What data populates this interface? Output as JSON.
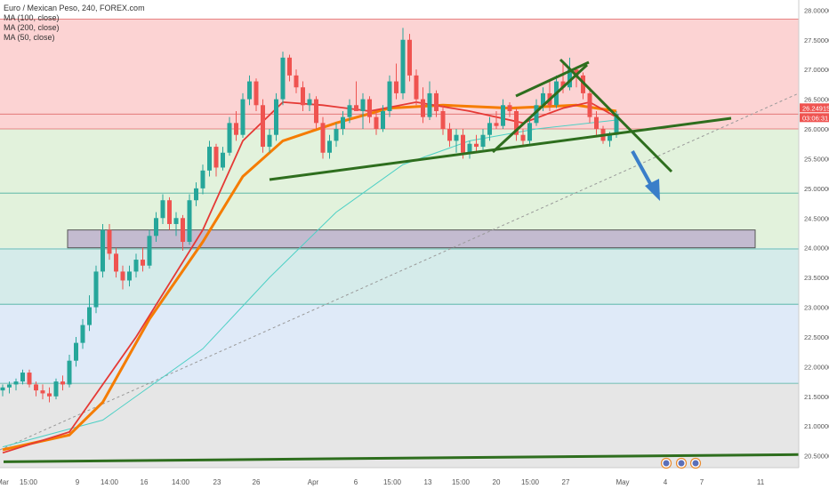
{
  "chart_data": {
    "type": "candlestick",
    "symbol_title": "Euro / Mexican Peso, 240, FOREX.com",
    "indicators": [
      "MA (100, close)",
      "MA (200, close)",
      "MA (50, close)"
    ],
    "y_ticks": [
      "28.00000",
      "27.50000",
      "27.00000",
      "26.50000",
      "26.00000",
      "25.50000",
      "25.00000",
      "24.50000",
      "24.00000",
      "23.50000",
      "23.00000",
      "22.50000",
      "22.00000",
      "21.50000",
      "21.00000",
      "20.50000"
    ],
    "ylim": [
      20.3,
      28.05
    ],
    "x_ticks": [
      "Mar",
      "15:00",
      "9",
      "14:00",
      "16",
      "14:00",
      "23",
      "26",
      "Apr",
      "6",
      "15:00",
      "13",
      "15:00",
      "20",
      "15:00",
      "27",
      "May",
      "4",
      "7",
      "11"
    ],
    "price_label": "26.24915",
    "time_label": "03:06:31",
    "bands": [
      {
        "from": 26.0,
        "to": 27.85,
        "color": "#fcd3d3"
      },
      {
        "from": 24.0,
        "to": 26.0,
        "color": "#e2f2dc"
      },
      {
        "from": 23.05,
        "to": 24.0,
        "color": "#d5ebea"
      },
      {
        "from": 21.72,
        "to": 23.05,
        "color": "#dfeaf8"
      },
      {
        "from": 20.3,
        "to": 21.72,
        "color": "#e6e6e6"
      }
    ],
    "levels": [
      27.85,
      26.25,
      26.0,
      24.92,
      23.98,
      23.05,
      21.72
    ],
    "zone": {
      "from": 24.0,
      "to": 24.3,
      "color": "#b8a8cc"
    },
    "colors": {
      "up": "#26a69a",
      "down": "#ef5350",
      "ma50": "#e53935",
      "ma100": "#f57c00",
      "ma200": "#4dd0c5",
      "trend": "#2e6e1e",
      "arrow": "#3a7ec9",
      "dotted": "#999999"
    },
    "candles": [
      [
        21.6,
        21.7,
        21.5,
        21.65
      ],
      [
        21.65,
        21.75,
        21.55,
        21.7
      ],
      [
        21.7,
        21.8,
        21.6,
        21.75
      ],
      [
        21.75,
        21.95,
        21.7,
        21.9
      ],
      [
        21.9,
        21.95,
        21.65,
        21.7
      ],
      [
        21.7,
        21.75,
        21.5,
        21.6
      ],
      [
        21.6,
        21.7,
        21.45,
        21.55
      ],
      [
        21.55,
        21.65,
        21.4,
        21.5
      ],
      [
        21.5,
        21.8,
        21.45,
        21.75
      ],
      [
        21.75,
        21.85,
        21.6,
        21.7
      ],
      [
        21.7,
        22.2,
        21.65,
        22.1
      ],
      [
        22.1,
        22.5,
        22.0,
        22.4
      ],
      [
        22.4,
        22.8,
        22.3,
        22.7
      ],
      [
        22.7,
        23.2,
        22.6,
        23.0
      ],
      [
        23.0,
        23.7,
        22.9,
        23.6
      ],
      [
        23.6,
        24.4,
        23.5,
        24.3
      ],
      [
        24.3,
        24.4,
        23.8,
        23.9
      ],
      [
        23.9,
        24.0,
        23.5,
        23.6
      ],
      [
        23.6,
        23.7,
        23.3,
        23.45
      ],
      [
        23.45,
        23.7,
        23.35,
        23.6
      ],
      [
        23.6,
        23.9,
        23.5,
        23.8
      ],
      [
        23.8,
        24.0,
        23.6,
        23.7
      ],
      [
        23.7,
        24.3,
        23.65,
        24.2
      ],
      [
        24.2,
        24.6,
        24.1,
        24.5
      ],
      [
        24.5,
        24.9,
        24.4,
        24.8
      ],
      [
        24.8,
        24.85,
        24.3,
        24.4
      ],
      [
        24.4,
        24.6,
        24.2,
        24.5
      ],
      [
        24.5,
        24.55,
        23.95,
        24.1
      ],
      [
        24.1,
        24.9,
        24.05,
        24.8
      ],
      [
        24.8,
        25.1,
        24.7,
        25.0
      ],
      [
        25.0,
        25.4,
        24.9,
        25.3
      ],
      [
        25.3,
        25.8,
        25.2,
        25.7
      ],
      [
        25.7,
        25.75,
        25.2,
        25.35
      ],
      [
        25.35,
        25.7,
        25.3,
        25.6
      ],
      [
        25.6,
        26.2,
        25.55,
        26.1
      ],
      [
        26.1,
        26.3,
        25.8,
        25.9
      ],
      [
        25.9,
        26.6,
        25.85,
        26.5
      ],
      [
        26.5,
        26.9,
        26.4,
        26.8
      ],
      [
        26.8,
        26.85,
        26.3,
        26.4
      ],
      [
        26.4,
        26.5,
        25.6,
        25.7
      ],
      [
        25.7,
        26.0,
        25.6,
        25.9
      ],
      [
        25.9,
        26.6,
        25.8,
        26.5
      ],
      [
        26.5,
        27.3,
        26.4,
        27.2
      ],
      [
        27.2,
        27.25,
        26.8,
        26.9
      ],
      [
        26.9,
        27.0,
        26.6,
        26.7
      ],
      [
        26.7,
        26.8,
        26.3,
        26.4
      ],
      [
        26.4,
        26.6,
        26.3,
        26.5
      ],
      [
        26.5,
        26.55,
        26.0,
        26.1
      ],
      [
        26.1,
        26.2,
        25.5,
        25.6
      ],
      [
        25.6,
        25.9,
        25.5,
        25.8
      ],
      [
        25.8,
        26.1,
        25.7,
        26.0
      ],
      [
        26.0,
        26.3,
        25.9,
        26.2
      ],
      [
        26.2,
        26.5,
        26.1,
        26.4
      ],
      [
        26.4,
        26.8,
        26.3,
        26.3
      ],
      [
        26.3,
        26.6,
        26.0,
        26.5
      ],
      [
        26.5,
        26.55,
        26.1,
        26.2
      ],
      [
        26.2,
        26.3,
        25.9,
        26.0
      ],
      [
        26.0,
        26.4,
        25.95,
        26.3
      ],
      [
        26.3,
        26.9,
        26.2,
        26.8
      ],
      [
        26.8,
        27.1,
        26.5,
        26.6
      ],
      [
        26.6,
        27.7,
        26.5,
        27.5
      ],
      [
        27.5,
        27.6,
        26.8,
        26.9
      ],
      [
        26.9,
        27.0,
        26.4,
        26.5
      ],
      [
        26.5,
        26.7,
        26.1,
        26.2
      ],
      [
        26.2,
        26.8,
        26.15,
        26.6
      ],
      [
        26.6,
        26.65,
        26.2,
        26.3
      ],
      [
        26.3,
        26.4,
        25.9,
        26.0
      ],
      [
        26.0,
        26.1,
        25.7,
        25.8
      ],
      [
        25.8,
        26.0,
        25.6,
        25.9
      ],
      [
        25.9,
        26.0,
        25.5,
        25.6
      ],
      [
        25.6,
        25.8,
        25.5,
        25.75
      ],
      [
        25.75,
        25.9,
        25.6,
        25.7
      ],
      [
        25.7,
        26.0,
        25.65,
        25.9
      ],
      [
        25.9,
        26.2,
        25.8,
        26.1
      ],
      [
        26.1,
        26.3,
        26.0,
        26.05
      ],
      [
        26.05,
        26.5,
        26.0,
        26.4
      ],
      [
        26.4,
        26.45,
        26.2,
        26.3
      ],
      [
        26.3,
        26.35,
        25.8,
        25.9
      ],
      [
        25.9,
        26.0,
        25.7,
        25.8
      ],
      [
        25.8,
        26.2,
        25.75,
        26.1
      ],
      [
        26.1,
        26.5,
        26.05,
        26.4
      ],
      [
        26.4,
        26.7,
        26.3,
        26.6
      ],
      [
        26.6,
        26.8,
        26.3,
        26.4
      ],
      [
        26.4,
        26.9,
        26.35,
        26.8
      ],
      [
        26.8,
        27.1,
        26.6,
        26.7
      ],
      [
        26.7,
        27.2,
        26.65,
        27.0
      ],
      [
        27.0,
        27.05,
        26.7,
        26.9
      ],
      [
        26.9,
        26.95,
        26.5,
        26.6
      ],
      [
        26.6,
        26.7,
        26.1,
        26.2
      ],
      [
        26.2,
        26.3,
        25.9,
        26.0
      ],
      [
        26.0,
        26.05,
        25.75,
        25.8
      ],
      [
        25.8,
        25.95,
        25.7,
        25.9
      ],
      [
        25.9,
        26.3,
        25.85,
        26.25
      ]
    ],
    "ma50": [
      [
        0,
        20.55
      ],
      [
        10,
        20.9
      ],
      [
        20,
        22.5
      ],
      [
        30,
        24.3
      ],
      [
        36,
        25.8
      ],
      [
        42,
        26.45
      ],
      [
        48,
        26.4
      ],
      [
        55,
        26.3
      ],
      [
        62,
        26.45
      ],
      [
        70,
        26.3
      ],
      [
        78,
        26.1
      ],
      [
        84,
        26.35
      ],
      [
        88,
        26.45
      ],
      [
        92,
        26.2
      ]
    ],
    "ma100": [
      [
        0,
        20.6
      ],
      [
        10,
        20.85
      ],
      [
        15,
        21.4
      ],
      [
        22,
        22.8
      ],
      [
        30,
        24.1
      ],
      [
        36,
        25.2
      ],
      [
        42,
        25.8
      ],
      [
        50,
        26.1
      ],
      [
        58,
        26.35
      ],
      [
        66,
        26.4
      ],
      [
        76,
        26.35
      ],
      [
        86,
        26.4
      ],
      [
        92,
        26.3
      ]
    ],
    "ma200": [
      [
        0,
        20.65
      ],
      [
        15,
        21.1
      ],
      [
        30,
        22.3
      ],
      [
        40,
        23.5
      ],
      [
        50,
        24.6
      ],
      [
        60,
        25.4
      ],
      [
        70,
        25.8
      ],
      [
        80,
        26.0
      ],
      [
        92,
        26.15
      ]
    ]
  }
}
